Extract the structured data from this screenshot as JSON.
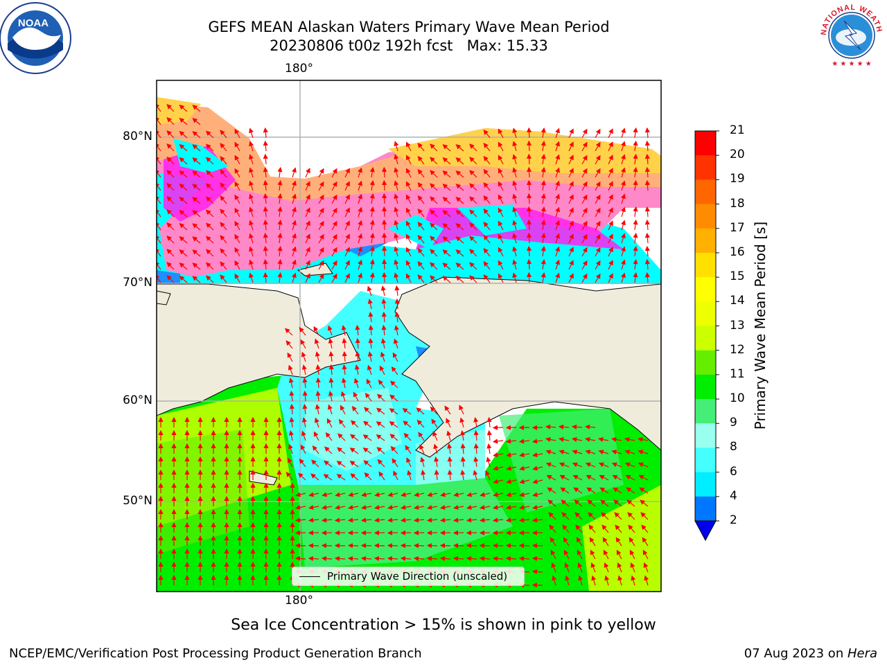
{
  "title": {
    "line1": "GEFS MEAN Alaskan Waters Primary Wave Mean Period",
    "line2": "20230806 t00z 192h fcst   Max: 15.33"
  },
  "map": {
    "lon_label_top": "180°",
    "lon_label_bottom": "180°",
    "lat_labels": [
      "80°N",
      "70°N",
      "60°N",
      "50°N"
    ],
    "legend_label": "Primary Wave Direction (unscaled)",
    "land_color": "#efecdc",
    "ice_colors": [
      "#ff22ee",
      "#ff88c8",
      "#ffb07a",
      "#ffd24a"
    ]
  },
  "colorbar": {
    "label": "Primary Wave Mean Period [s]",
    "ticks": [
      "21",
      "20",
      "19",
      "18",
      "17",
      "16",
      "15",
      "14",
      "13",
      "12",
      "11",
      "10",
      "9",
      "8",
      "6",
      "4",
      "2"
    ],
    "colors": [
      "#ff0000",
      "#ff3300",
      "#ff6600",
      "#ff8c00",
      "#ffb000",
      "#ffe000",
      "#ffff00",
      "#eeff00",
      "#ccff00",
      "#66ee00",
      "#00ee00",
      "#44ee77",
      "#99ffee",
      "#44ffff",
      "#00eeff",
      "#0077ff"
    ],
    "extend_color": "#0000ee"
  },
  "logos": {
    "noaa": "NOAA",
    "nws_top": "NATIONAL WEATHER SERVICE"
  },
  "ice_note": "Sea Ice Concentration > 15% is shown in pink to yellow",
  "footer": {
    "left": "NCEP/EMC/Verification Post Processing Product Generation Branch",
    "right_date": "07 Aug 2023 on ",
    "right_host": "Hera"
  }
}
